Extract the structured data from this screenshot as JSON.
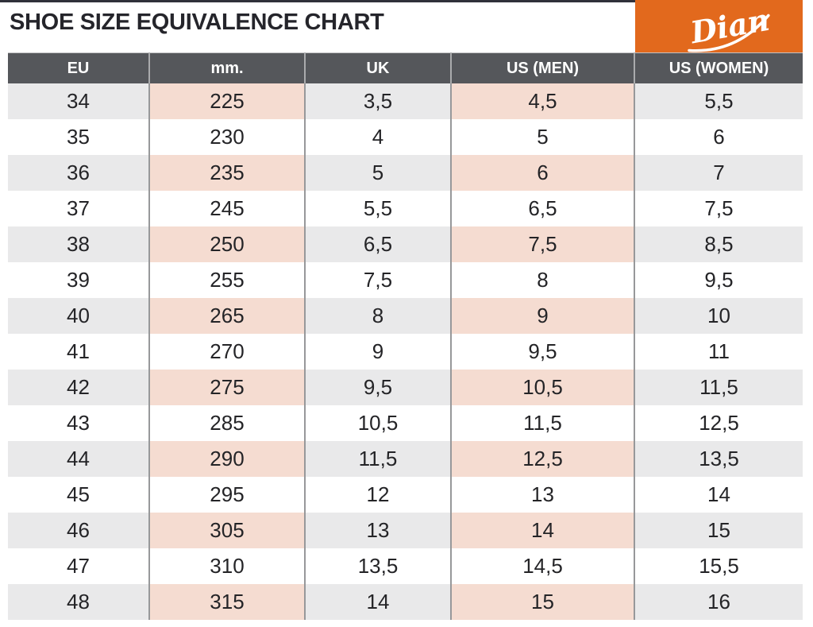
{
  "title": "SHOE SIZE EQUIVALENCE CHART",
  "brand": {
    "name": "Dian",
    "background_color": "#e2691d",
    "text_color": "#ffffff"
  },
  "colors": {
    "header_bg": "#55575b",
    "header_text": "#ffffff",
    "stripe_gray": "#e9e9ea",
    "stripe_pink": "#f5dcd1",
    "divider": "#97989a",
    "accent_orange": "#e2691d",
    "title_text": "#25252b"
  },
  "table": {
    "columns": [
      {
        "key": "eu",
        "label": "EU"
      },
      {
        "key": "mm",
        "label": "mm."
      },
      {
        "key": "uk",
        "label": "UK"
      },
      {
        "key": "us-men",
        "label": "US (MEN)"
      },
      {
        "key": "us-women",
        "label": "US (WOMEN)"
      }
    ],
    "highlight_columns": [
      1,
      3
    ],
    "rows": [
      [
        "34",
        "225",
        "3,5",
        "4,5",
        "5,5"
      ],
      [
        "35",
        "230",
        "4",
        "5",
        "6"
      ],
      [
        "36",
        "235",
        "5",
        "6",
        "7"
      ],
      [
        "37",
        "245",
        "5,5",
        "6,5",
        "7,5"
      ],
      [
        "38",
        "250",
        "6,5",
        "7,5",
        "8,5"
      ],
      [
        "39",
        "255",
        "7,5",
        "8",
        "9,5"
      ],
      [
        "40",
        "265",
        "8",
        "9",
        "10"
      ],
      [
        "41",
        "270",
        "9",
        "9,5",
        "11"
      ],
      [
        "42",
        "275",
        "9,5",
        "10,5",
        "11,5"
      ],
      [
        "43",
        "285",
        "10,5",
        "11,5",
        "12,5"
      ],
      [
        "44",
        "290",
        "11,5",
        "12,5",
        "13,5"
      ],
      [
        "45",
        "295",
        "12",
        "13",
        "14"
      ],
      [
        "46",
        "305",
        "13",
        "14",
        "15"
      ],
      [
        "47",
        "310",
        "13,5",
        "14,5",
        "15,5"
      ],
      [
        "48",
        "315",
        "14",
        "15",
        "16"
      ]
    ]
  },
  "chart_data": {
    "type": "table",
    "title": "SHOE SIZE EQUIVALENCE CHART",
    "columns": [
      "EU",
      "mm.",
      "UK",
      "US (MEN)",
      "US (WOMEN)"
    ],
    "rows": [
      [
        "34",
        "225",
        "3,5",
        "4,5",
        "5,5"
      ],
      [
        "35",
        "230",
        "4",
        "5",
        "6"
      ],
      [
        "36",
        "235",
        "5",
        "6",
        "7"
      ],
      [
        "37",
        "245",
        "5,5",
        "6,5",
        "7,5"
      ],
      [
        "38",
        "250",
        "6,5",
        "7,5",
        "8,5"
      ],
      [
        "39",
        "255",
        "7,5",
        "8",
        "9,5"
      ],
      [
        "40",
        "265",
        "8",
        "9",
        "10"
      ],
      [
        "41",
        "270",
        "9",
        "9,5",
        "11"
      ],
      [
        "42",
        "275",
        "9,5",
        "10,5",
        "11,5"
      ],
      [
        "43",
        "285",
        "10,5",
        "11,5",
        "12,5"
      ],
      [
        "44",
        "290",
        "11,5",
        "12,5",
        "13,5"
      ],
      [
        "45",
        "295",
        "12",
        "13",
        "14"
      ],
      [
        "46",
        "305",
        "13",
        "14",
        "15"
      ],
      [
        "47",
        "310",
        "13,5",
        "14,5",
        "15,5"
      ],
      [
        "48",
        "315",
        "14",
        "15",
        "16"
      ]
    ]
  }
}
